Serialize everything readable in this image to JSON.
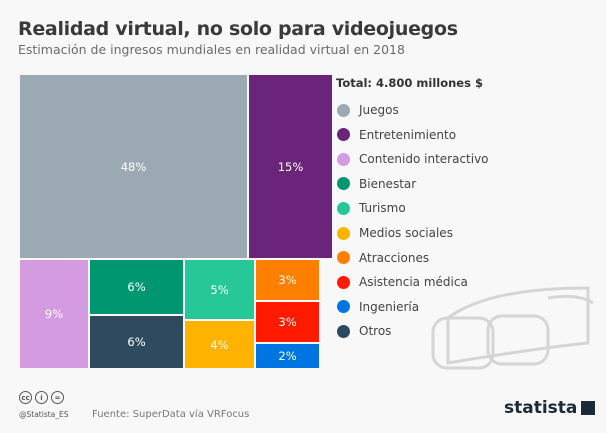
{
  "header": {
    "title": "Realidad virtual, no solo para videojuegos",
    "subtitle": "Estimación de ingresos mundiales en realidad virtual en 2018"
  },
  "chart_data": {
    "type": "treemap",
    "total_label": "Total: 4.800 millones $",
    "legend_placement": "right",
    "series": [
      {
        "name": "Juegos",
        "value": 48,
        "label": "48%",
        "color": "#9aa9b2"
      },
      {
        "name": "Entretenimiento",
        "value": 15,
        "label": "15%",
        "color": "#6a2479"
      },
      {
        "name": "Contenido interactivo",
        "value": 9,
        "label": "9%",
        "color": "#d59be0"
      },
      {
        "name": "Bienestar",
        "value": 6,
        "label": "6%",
        "color": "#009670"
      },
      {
        "name": "Turismo",
        "value": 5,
        "label": "5%",
        "color": "#27c898"
      },
      {
        "name": "Medios sociales",
        "value": 4,
        "label": "4%",
        "color": "#ffb300"
      },
      {
        "name": "Atracciones",
        "value": 3,
        "label": "3%",
        "color": "#ff8000"
      },
      {
        "name": "Asistencia médica",
        "value": 3,
        "label": "3%",
        "color": "#ff1a00"
      },
      {
        "name": "Ingeniería",
        "value": 2,
        "label": "2%",
        "color": "#0074e0"
      },
      {
        "name": "Otros",
        "value": 6,
        "label": "6%",
        "color": "#2f4a5e"
      }
    ]
  },
  "footer": {
    "handle": "@Statista_ES",
    "source": "Fuente: SuperData vía VRFocus",
    "logo": "statista",
    "license_icons": [
      "cc",
      "by",
      "nd"
    ]
  }
}
